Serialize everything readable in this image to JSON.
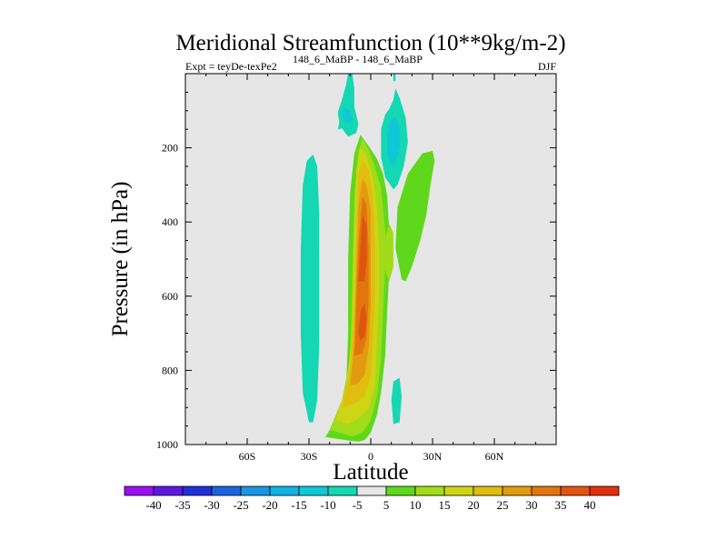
{
  "chart_data": {
    "type": "filled-contour",
    "title": "Meridional Streamfunction (10**9kg/m-2)",
    "subtitle_left": "Expt = teyDe-texPe2",
    "subtitle_superscript": "148_6_MaBP - 148_6_MaBP",
    "subtitle_right": "DJF",
    "xlabel": "Latitude",
    "ylabel": "Pressure (in hPa)",
    "xlim": [
      -90,
      90
    ],
    "ylim": [
      1000,
      0
    ],
    "xticks": [
      {
        "value": -60,
        "label": "60S"
      },
      {
        "value": -30,
        "label": "30S"
      },
      {
        "value": 0,
        "label": "0"
      },
      {
        "value": 30,
        "label": "30N"
      },
      {
        "value": 60,
        "label": "60N"
      }
    ],
    "yticks": [
      {
        "value": 200,
        "label": "200"
      },
      {
        "value": 400,
        "label": "400"
      },
      {
        "value": 600,
        "label": "600"
      },
      {
        "value": 800,
        "label": "800"
      },
      {
        "value": 1000,
        "label": "1000"
      }
    ],
    "background_color": "#e6e6e6",
    "colorbar": {
      "levels": [
        "-40",
        "-35",
        "-30",
        "-25",
        "-20",
        "-15",
        "-10",
        "-5",
        "5",
        "10",
        "15",
        "20",
        "25",
        "30",
        "35",
        "40"
      ],
      "colors": [
        "#9b10ee",
        "#5f17dd",
        "#2030d8",
        "#1a63df",
        "#1995e1",
        "#10b3e3",
        "#0fc7d7",
        "#14d7b4",
        "#e6e6e6",
        "#5fd81c",
        "#a0dc19",
        "#cfd414",
        "#e1bd10",
        "#e29b10",
        "#e1760f",
        "#df5410",
        "#e0300e"
      ]
    },
    "regions": [
      {
        "label": "southern positive cell",
        "level": "5",
        "color": "#5fd81c",
        "outline": [
          [
            -22,
            980
          ],
          [
            -16,
            925
          ],
          [
            -12,
            850
          ],
          [
            -11,
            700
          ],
          [
            -11,
            500
          ],
          [
            -10,
            320
          ],
          [
            -8,
            215
          ],
          [
            -5,
            165
          ],
          [
            -1,
            195
          ],
          [
            3,
            230
          ],
          [
            6,
            270
          ],
          [
            8,
            330
          ],
          [
            9,
            430
          ],
          [
            9,
            530
          ],
          [
            8,
            640
          ],
          [
            7,
            760
          ],
          [
            5,
            860
          ],
          [
            3,
            920
          ],
          [
            0,
            968
          ],
          [
            -3,
            988
          ],
          [
            -6,
            992
          ],
          [
            -10,
            990
          ]
        ]
      },
      {
        "label": "southern positive cell",
        "level": "10",
        "color": "#a0dc19",
        "outline": [
          [
            -20,
            960
          ],
          [
            -14,
            880
          ],
          [
            -10,
            770
          ],
          [
            -9,
            560
          ],
          [
            -8,
            330
          ],
          [
            -6,
            210
          ],
          [
            -4,
            175
          ],
          [
            -1,
            205
          ],
          [
            2,
            250
          ],
          [
            5,
            310
          ],
          [
            7,
            420
          ],
          [
            7,
            520
          ],
          [
            6,
            640
          ],
          [
            5,
            770
          ],
          [
            3,
            870
          ],
          [
            0,
            935
          ],
          [
            -4,
            968
          ],
          [
            -9,
            978
          ]
        ]
      },
      {
        "label": "southern positive cell",
        "level": "15",
        "color": "#cfd414",
        "outline": [
          [
            -17,
            935
          ],
          [
            -12,
            845
          ],
          [
            -9,
            700
          ],
          [
            -8,
            450
          ],
          [
            -7,
            260
          ],
          [
            -5,
            200
          ],
          [
            -2,
            220
          ],
          [
            1,
            280
          ],
          [
            3,
            360
          ],
          [
            4,
            470
          ],
          [
            4,
            590
          ],
          [
            3,
            720
          ],
          [
            2,
            840
          ],
          [
            -1,
            905
          ],
          [
            -6,
            930
          ],
          [
            -11,
            945
          ]
        ]
      },
      {
        "label": "southern positive cell",
        "level": "20",
        "color": "#e1bd10",
        "outline": [
          [
            -14,
            900
          ],
          [
            -10,
            800
          ],
          [
            -8,
            620
          ],
          [
            -7,
            400
          ],
          [
            -6,
            270
          ],
          [
            -4,
            232
          ],
          [
            -1,
            262
          ],
          [
            1,
            330
          ],
          [
            2,
            440
          ],
          [
            2,
            580
          ],
          [
            1,
            720
          ],
          [
            0,
            815
          ],
          [
            -3,
            870
          ],
          [
            -8,
            890
          ]
        ]
      },
      {
        "label": "southern positive cell",
        "level": "25",
        "color": "#e29b10",
        "outline": [
          [
            -10,
            840
          ],
          [
            -8,
            720
          ],
          [
            -7,
            520
          ],
          [
            -6,
            360
          ],
          [
            -4,
            282
          ],
          [
            -2,
            302
          ],
          [
            0,
            370
          ],
          [
            0,
            480
          ],
          [
            0,
            620
          ],
          [
            -1,
            740
          ],
          [
            -3,
            810
          ],
          [
            -6,
            835
          ]
        ]
      },
      {
        "label": "southern positive cell",
        "level": "30",
        "color": "#e1760f",
        "outline": [
          [
            -8,
            760
          ],
          [
            -7,
            620
          ],
          [
            -6,
            460
          ],
          [
            -4,
            330
          ],
          [
            -2,
            355
          ],
          [
            -1,
            470
          ],
          [
            -1,
            610
          ],
          [
            -2,
            710
          ],
          [
            -4,
            755
          ]
        ]
      },
      {
        "label": "southern positive cell",
        "level": "35",
        "color": "#df5410",
        "outline": [
          [
            -6,
            560
          ],
          [
            -5,
            460
          ],
          [
            -4,
            380
          ],
          [
            -2,
            410
          ],
          [
            -2,
            500
          ],
          [
            -3,
            560
          ]
        ]
      },
      {
        "label": "southern positive cell",
        "level": "35",
        "color": "#df5410",
        "outline": [
          [
            -6,
            700
          ],
          [
            -5,
            640
          ],
          [
            -3,
            620
          ],
          [
            -2,
            660
          ],
          [
            -3,
            710
          ],
          [
            -5,
            720
          ]
        ]
      },
      {
        "label": "southern positive cell side lobe",
        "level": "10",
        "color": "#a0dc19",
        "outline": [
          [
            7,
            440
          ],
          [
            9,
            405
          ],
          [
            11,
            430
          ],
          [
            11,
            520
          ],
          [
            9,
            560
          ],
          [
            7,
            530
          ]
        ]
      },
      {
        "label": "southern negative cell",
        "level": "-5",
        "color": "#14d7b4",
        "outline": [
          [
            -30,
            940
          ],
          [
            -33,
            860
          ],
          [
            -34,
            700
          ],
          [
            -34,
            480
          ],
          [
            -33,
            300
          ],
          [
            -31,
            235
          ],
          [
            -28,
            218
          ],
          [
            -26,
            250
          ],
          [
            -25,
            380
          ],
          [
            -25,
            560
          ],
          [
            -25,
            730
          ],
          [
            -26,
            880
          ],
          [
            -28,
            940
          ]
        ]
      },
      {
        "label": "northern positive cell",
        "level": "5",
        "color": "#5fd81c",
        "outline": [
          [
            15,
            555
          ],
          [
            12,
            470
          ],
          [
            13,
            360
          ],
          [
            18,
            270
          ],
          [
            25,
            215
          ],
          [
            30,
            208
          ],
          [
            31,
            235
          ],
          [
            29,
            300
          ],
          [
            27,
            380
          ],
          [
            24,
            450
          ],
          [
            20,
            520
          ],
          [
            17,
            560
          ]
        ]
      },
      {
        "label": "upper tropospheric negative",
        "level": "-5",
        "color": "#14d7b4",
        "outline": [
          [
            11,
            312
          ],
          [
            7,
            280
          ],
          [
            5,
            225
          ],
          [
            5,
            150
          ],
          [
            7,
            110
          ],
          [
            9,
            95
          ],
          [
            11,
            70
          ],
          [
            12,
            40
          ],
          [
            14,
            65
          ],
          [
            17,
            120
          ],
          [
            18,
            185
          ],
          [
            16,
            250
          ],
          [
            13,
            300
          ]
        ]
      },
      {
        "label": "upper tropospheric negative",
        "level": "-10",
        "color": "#0fc7d7",
        "outline": [
          [
            11,
            255
          ],
          [
            8,
            220
          ],
          [
            8,
            165
          ],
          [
            9,
            130
          ],
          [
            12,
            115
          ],
          [
            14,
            150
          ],
          [
            14,
            200
          ],
          [
            12,
            240
          ]
        ]
      },
      {
        "label": "stratospheric negative",
        "level": "-5",
        "color": "#14d7b4",
        "outline": [
          [
            -11,
            170
          ],
          [
            -15,
            140
          ],
          [
            -16,
            105
          ],
          [
            -14,
            70
          ],
          [
            -12,
            30
          ],
          [
            -11,
            0
          ],
          [
            -9,
            0
          ],
          [
            -8,
            40
          ],
          [
            -8,
            90
          ],
          [
            -6,
            135
          ],
          [
            -7,
            160
          ]
        ]
      },
      {
        "label": "stratospheric negative",
        "level": "-10",
        "color": "#0fc7d7",
        "outline": [
          [
            -12,
            135
          ],
          [
            -14,
            110
          ],
          [
            -13,
            90
          ],
          [
            -10,
            100
          ],
          [
            -9,
            125
          ]
        ]
      },
      {
        "label": "stratospheric negative (lower left)",
        "level": "-5",
        "color": "#14d7b4",
        "outline": [
          [
            -12,
            145
          ],
          [
            -16,
            150
          ],
          [
            -15,
            125
          ],
          [
            -12,
            130
          ]
        ]
      },
      {
        "label": "stratospheric negative (north)",
        "level": "-5",
        "color": "#14d7b4",
        "outline": [
          [
            11,
            20
          ],
          [
            11,
            0
          ],
          [
            12,
            0
          ],
          [
            12,
            20
          ]
        ]
      },
      {
        "label": "surface negative",
        "level": "-5",
        "color": "#14d7b4",
        "outline": [
          [
            11,
            945
          ],
          [
            10,
            880
          ],
          [
            11,
            830
          ],
          [
            14,
            820
          ],
          [
            15,
            870
          ],
          [
            14,
            940
          ]
        ]
      }
    ]
  }
}
